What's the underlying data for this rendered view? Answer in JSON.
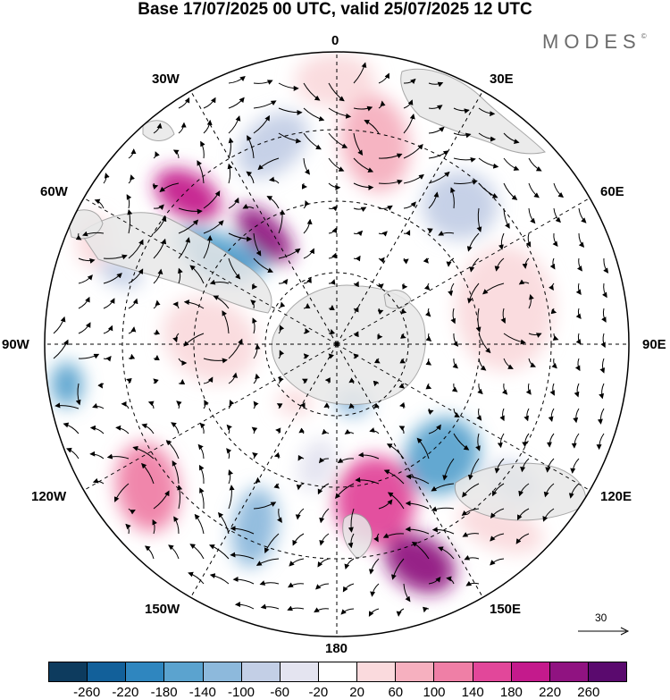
{
  "title": "Base 17/07/2025 00 UTC, valid 25/07/2025 12 UTC",
  "logo": {
    "text": "MODES",
    "mark": "©"
  },
  "map": {
    "projection": "south-polar-stereographic",
    "longitude_labels": [
      "0",
      "30E",
      "60E",
      "90E",
      "120E",
      "150E",
      "180",
      "150W",
      "120W",
      "90W",
      "60W",
      "30W"
    ],
    "land_color": "#e8e8e8",
    "graticule": "dashed"
  },
  "reference_vector": {
    "label": "30"
  },
  "colorbar": {
    "tick_labels": [
      "-260",
      "-220",
      "-180",
      "-140",
      "-100",
      "-60",
      "-20",
      "20",
      "60",
      "100",
      "140",
      "180",
      "220",
      "260"
    ],
    "colors": [
      "#0d3b5e",
      "#12609a",
      "#2f86bf",
      "#5ba3cf",
      "#8db9dc",
      "#c3cfe6",
      "#e4e4f0",
      "#ffffff",
      "#fadadd",
      "#f6b0bf",
      "#ef7fa6",
      "#e2479a",
      "#c41a8c",
      "#901381",
      "#5a0a6e"
    ]
  }
}
